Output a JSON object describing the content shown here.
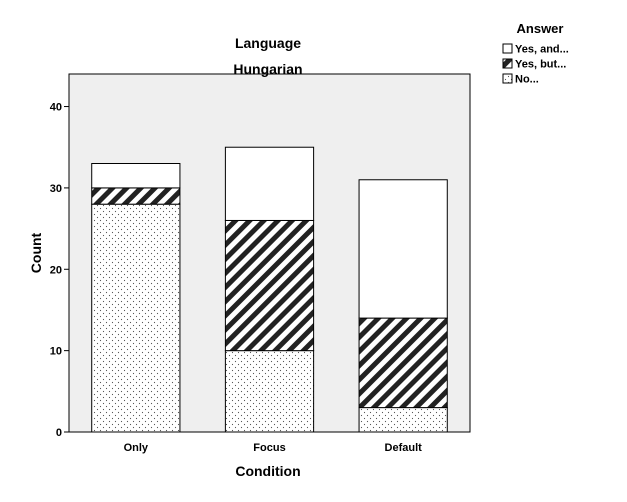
{
  "chart_data": {
    "type": "bar",
    "stacked": true,
    "title": "Language",
    "subtitle": "Hungarian",
    "xlabel": "Condition",
    "ylabel": "Count",
    "ylim": [
      0,
      44
    ],
    "yticks": [
      0,
      10,
      20,
      30,
      40
    ],
    "categories": [
      "Only",
      "Focus",
      "Default"
    ],
    "legend_title": "Answer",
    "legend_position": "top-right",
    "grid": false,
    "plot_background": "#efefef",
    "series": [
      {
        "name": "No...",
        "pattern": "dots",
        "values": [
          28,
          10,
          3
        ]
      },
      {
        "name": "Yes, but...",
        "pattern": "diagonal-stripes",
        "values": [
          2,
          16,
          11
        ]
      },
      {
        "name": "Yes, and...",
        "pattern": "none",
        "values": [
          3,
          9,
          17
        ]
      }
    ]
  }
}
